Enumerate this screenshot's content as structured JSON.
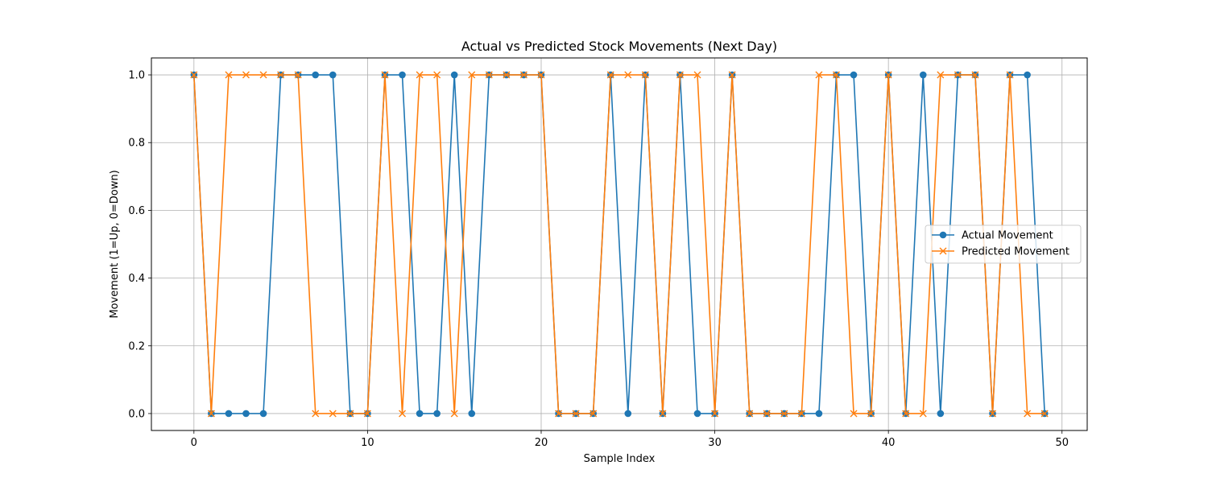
{
  "chart_data": {
    "type": "line",
    "title": "Actual vs Predicted Stock Movements (Next Day)",
    "xlabel": "Sample Index",
    "ylabel": "Movement (1=Up, 0=Down)",
    "xlim": [
      -2.45,
      51.45
    ],
    "ylim": [
      -0.05,
      1.05
    ],
    "xticks": [
      0,
      10,
      20,
      30,
      40,
      50
    ],
    "yticks": [
      0.0,
      0.2,
      0.4,
      0.6,
      0.8,
      1.0
    ],
    "xtick_labels": [
      "0",
      "10",
      "20",
      "30",
      "40",
      "50"
    ],
    "ytick_labels": [
      "0.0",
      "0.2",
      "0.4",
      "0.6",
      "0.8",
      "1.0"
    ],
    "grid": true,
    "legend": "center-right",
    "x": [
      0,
      1,
      2,
      3,
      4,
      5,
      6,
      7,
      8,
      9,
      10,
      11,
      12,
      13,
      14,
      15,
      16,
      17,
      18,
      19,
      20,
      21,
      22,
      23,
      24,
      25,
      26,
      27,
      28,
      29,
      30,
      31,
      32,
      33,
      34,
      35,
      36,
      37,
      38,
      39,
      40,
      41,
      42,
      43,
      44,
      45,
      46,
      47,
      48,
      49
    ],
    "series": [
      {
        "name": "Actual Movement",
        "color": "#1f77b4",
        "marker": "circle",
        "values": [
          1,
          0,
          0,
          0,
          0,
          1,
          1,
          1,
          1,
          0,
          0,
          1,
          1,
          0,
          0,
          1,
          0,
          1,
          1,
          1,
          1,
          0,
          0,
          0,
          1,
          0,
          1,
          0,
          1,
          0,
          0,
          1,
          0,
          0,
          0,
          0,
          0,
          1,
          1,
          0,
          1,
          0,
          1,
          0,
          1,
          1,
          0,
          1,
          1,
          0
        ]
      },
      {
        "name": "Predicted Movement",
        "color": "#ff7f0e",
        "marker": "x",
        "values": [
          1,
          0,
          1,
          1,
          1,
          1,
          1,
          0,
          0,
          0,
          0,
          1,
          0,
          1,
          1,
          0,
          1,
          1,
          1,
          1,
          1,
          0,
          0,
          0,
          1,
          1,
          1,
          0,
          1,
          1,
          0,
          1,
          0,
          0,
          0,
          0,
          1,
          1,
          0,
          0,
          1,
          0,
          0,
          1,
          1,
          1,
          0,
          1,
          0,
          0
        ]
      }
    ]
  }
}
